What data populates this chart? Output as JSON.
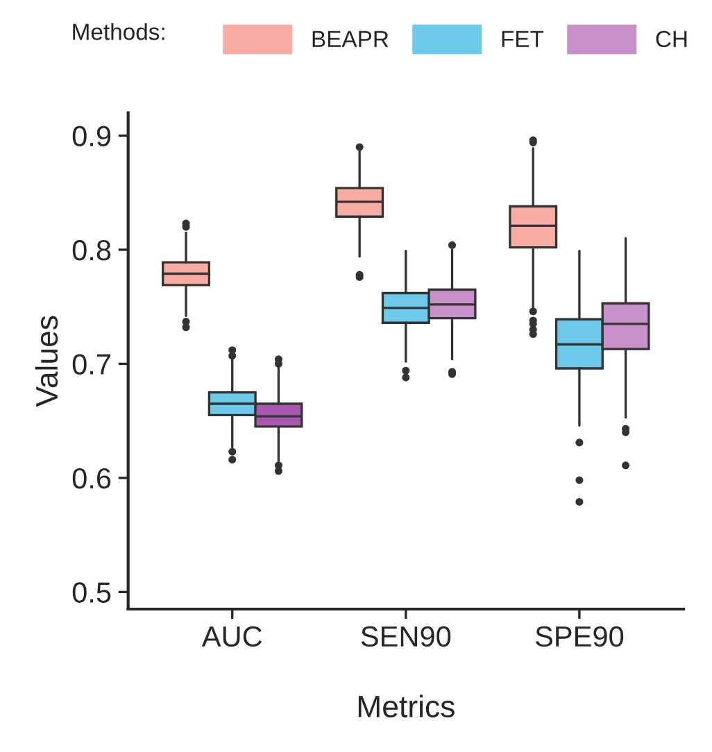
{
  "chart_data": {
    "type": "box",
    "xlabel": "Metrics",
    "ylabel": "Values",
    "legend_title": "Methods:",
    "legend": "top",
    "grid": false,
    "categories": [
      "AUC",
      "SEN90",
      "SPE90"
    ],
    "ylim": [
      0.485,
      0.92
    ],
    "yticks": [
      0.5,
      0.6,
      0.7,
      0.8,
      0.9
    ],
    "series": [
      {
        "name": "BEAPR",
        "color": "#f8aca4",
        "boxes": [
          {
            "low": 0.742,
            "q1": 0.769,
            "median": 0.779,
            "q3": 0.789,
            "high": 0.815,
            "outliers": [
              0.823,
              0.82,
              0.737,
              0.732
            ]
          },
          {
            "low": 0.794,
            "q1": 0.829,
            "median": 0.842,
            "q3": 0.854,
            "high": 0.887,
            "outliers": [
              0.89,
              0.778,
              0.776
            ]
          },
          {
            "low": 0.749,
            "q1": 0.802,
            "median": 0.821,
            "q3": 0.838,
            "high": 0.889,
            "outliers": [
              0.896,
              0.894,
              0.746,
              0.738,
              0.735,
              0.73,
              0.726
            ]
          }
        ]
      },
      {
        "name": "FET",
        "color": "#6ecaeb",
        "boxes": [
          {
            "low": 0.627,
            "q1": 0.655,
            "median": 0.665,
            "q3": 0.675,
            "high": 0.705,
            "outliers": [
              0.712,
              0.707,
              0.623,
              0.616
            ]
          },
          {
            "low": 0.702,
            "q1": 0.736,
            "median": 0.749,
            "q3": 0.762,
            "high": 0.799,
            "outliers": [
              0.694,
              0.688
            ]
          },
          {
            "low": 0.646,
            "q1": 0.696,
            "median": 0.717,
            "q3": 0.739,
            "high": 0.799,
            "outliers": [
              0.631,
              0.598,
              0.579
            ]
          }
        ]
      },
      {
        "name": "CH",
        "color": "#c790c8",
        "colors": [
          "#a958b0",
          "#c790c8",
          "#c790c8"
        ],
        "boxes": [
          {
            "low": 0.615,
            "q1": 0.645,
            "median": 0.654,
            "q3": 0.665,
            "high": 0.698,
            "outliers": [
              0.704,
              0.7,
              0.611,
              0.606
            ]
          },
          {
            "low": 0.704,
            "q1": 0.74,
            "median": 0.752,
            "q3": 0.765,
            "high": 0.8,
            "outliers": [
              0.804,
              0.693,
              0.691
            ]
          },
          {
            "low": 0.653,
            "q1": 0.713,
            "median": 0.735,
            "q3": 0.753,
            "high": 0.81,
            "outliers": [
              0.643,
              0.64,
              0.611
            ]
          }
        ]
      }
    ]
  }
}
